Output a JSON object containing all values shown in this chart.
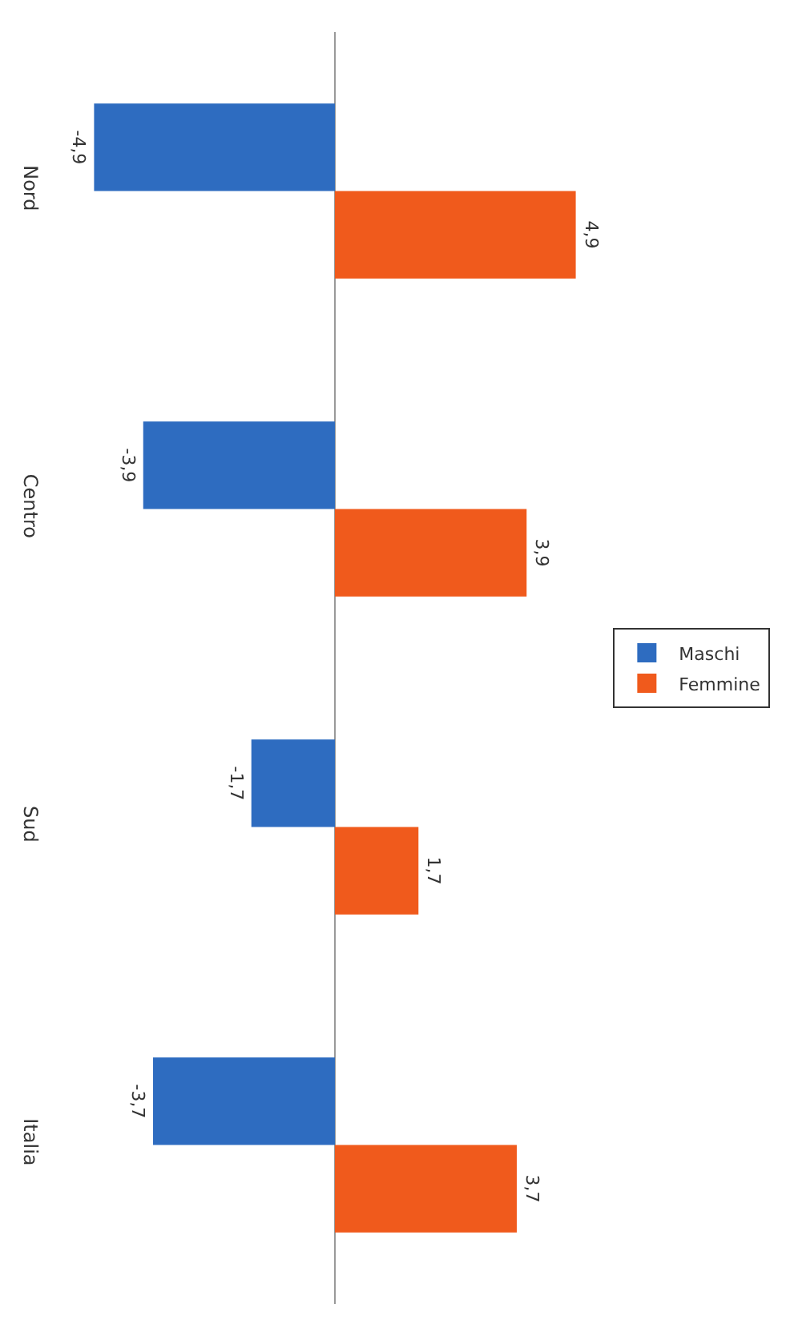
{
  "chart_data": {
    "type": "bar",
    "orientation": "horizontal",
    "categories": [
      "Nord",
      "Centro",
      "Sud",
      "Italia"
    ],
    "series": [
      {
        "name": "Maschi",
        "color": "#2e6cc0",
        "values": [
          -4.9,
          -3.9,
          -1.7,
          -3.7
        ],
        "value_labels": [
          "-4,9",
          "-3,9",
          "-1,7",
          "-3,7"
        ]
      },
      {
        "name": "Femmine",
        "color": "#f05a1c",
        "values": [
          4.9,
          3.9,
          1.7,
          3.7
        ],
        "value_labels": [
          "4,9",
          "3,9",
          "1,7",
          "3,7"
        ]
      }
    ],
    "legend": "right"
  }
}
